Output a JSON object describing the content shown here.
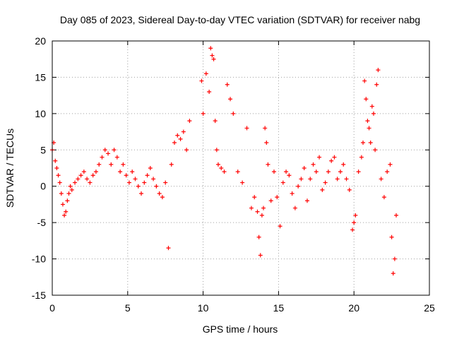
{
  "chart_data": {
    "type": "scatter",
    "title": "Day 085 of 2023, Sidereal Day-to-day VTEC variation (SDTVAR) for receiver nabg",
    "xlabel": "GPS time / hours",
    "ylabel": "SDTVAR / TECUs",
    "xlim": [
      0,
      25
    ],
    "ylim": [
      -15,
      20
    ],
    "xticks": [
      0,
      5,
      10,
      15,
      20,
      25
    ],
    "yticks": [
      -15,
      -10,
      -5,
      0,
      5,
      10,
      15,
      20
    ],
    "grid": true,
    "marker": "plus",
    "color": "#ff0000",
    "series": [
      {
        "name": "SDTVAR",
        "x": [
          0.0,
          0.1,
          0.2,
          0.3,
          0.4,
          0.5,
          0.6,
          0.7,
          0.8,
          0.9,
          1.0,
          1.1,
          1.2,
          1.3,
          1.5,
          1.7,
          1.9,
          2.1,
          2.3,
          2.5,
          2.7,
          2.9,
          3.1,
          3.3,
          3.5,
          3.7,
          3.9,
          4.1,
          4.3,
          4.5,
          4.7,
          4.9,
          5.1,
          5.3,
          5.5,
          5.7,
          5.9,
          6.1,
          6.3,
          6.5,
          6.7,
          6.9,
          7.1,
          7.3,
          7.5,
          7.7,
          7.9,
          8.1,
          8.3,
          8.5,
          8.7,
          8.9,
          9.1,
          9.9,
          10.0,
          10.2,
          10.4,
          10.5,
          10.6,
          10.7,
          10.8,
          10.9,
          11.0,
          11.2,
          11.4,
          11.6,
          11.8,
          12.0,
          12.3,
          12.6,
          12.9,
          13.2,
          13.4,
          13.6,
          13.7,
          13.8,
          13.9,
          14.0,
          14.1,
          14.2,
          14.3,
          14.5,
          14.7,
          14.9,
          15.1,
          15.3,
          15.5,
          15.7,
          15.9,
          16.1,
          16.3,
          16.5,
          16.7,
          16.9,
          17.1,
          17.3,
          17.5,
          17.7,
          17.9,
          18.1,
          18.3,
          18.5,
          18.7,
          18.9,
          19.1,
          19.3,
          19.5,
          19.7,
          19.9,
          20.0,
          20.1,
          20.3,
          20.5,
          20.6,
          20.7,
          20.8,
          20.9,
          21.0,
          21.1,
          21.2,
          21.3,
          21.4,
          21.5,
          21.6,
          21.8,
          22.0,
          22.2,
          22.4,
          22.5,
          22.6,
          22.7,
          22.8
        ],
        "y": [
          5.0,
          6.0,
          3.5,
          2.5,
          1.5,
          0.5,
          -1.0,
          -2.5,
          -4.0,
          -3.5,
          -2.0,
          -1.0,
          0.0,
          -0.5,
          0.5,
          1.0,
          1.5,
          2.0,
          1.0,
          0.5,
          1.5,
          2.0,
          3.0,
          4.0,
          5.0,
          4.5,
          3.0,
          5.0,
          4.0,
          2.0,
          3.0,
          1.5,
          0.5,
          2.0,
          1.0,
          0.0,
          -1.0,
          0.5,
          1.5,
          2.5,
          1.0,
          0.0,
          -1.0,
          -1.5,
          0.5,
          -8.5,
          3.0,
          6.0,
          7.0,
          6.5,
          7.5,
          5.0,
          9.0,
          14.5,
          10.0,
          15.5,
          13.0,
          19.0,
          18.0,
          17.5,
          9.0,
          5.0,
          3.0,
          2.5,
          2.0,
          14.0,
          12.0,
          10.0,
          2.0,
          0.5,
          8.0,
          -3.0,
          -1.5,
          -3.5,
          -7.0,
          -9.5,
          -4.0,
          -3.0,
          8.0,
          6.0,
          3.0,
          -2.0,
          2.0,
          -1.5,
          -5.5,
          0.5,
          2.0,
          1.5,
          -1.0,
          -3.0,
          0.0,
          1.0,
          2.5,
          -2.0,
          1.0,
          3.0,
          2.0,
          4.0,
          -0.5,
          0.5,
          2.0,
          3.5,
          4.0,
          1.0,
          2.0,
          3.0,
          1.0,
          -0.5,
          -6.0,
          -5.0,
          -4.0,
          2.0,
          4.0,
          6.0,
          14.5,
          12.0,
          9.0,
          8.0,
          6.0,
          11.0,
          10.0,
          5.0,
          14.0,
          16.0,
          1.0,
          -1.5,
          2.0,
          3.0,
          -7.0,
          -12.0,
          -10.0,
          -4.0
        ]
      }
    ]
  }
}
